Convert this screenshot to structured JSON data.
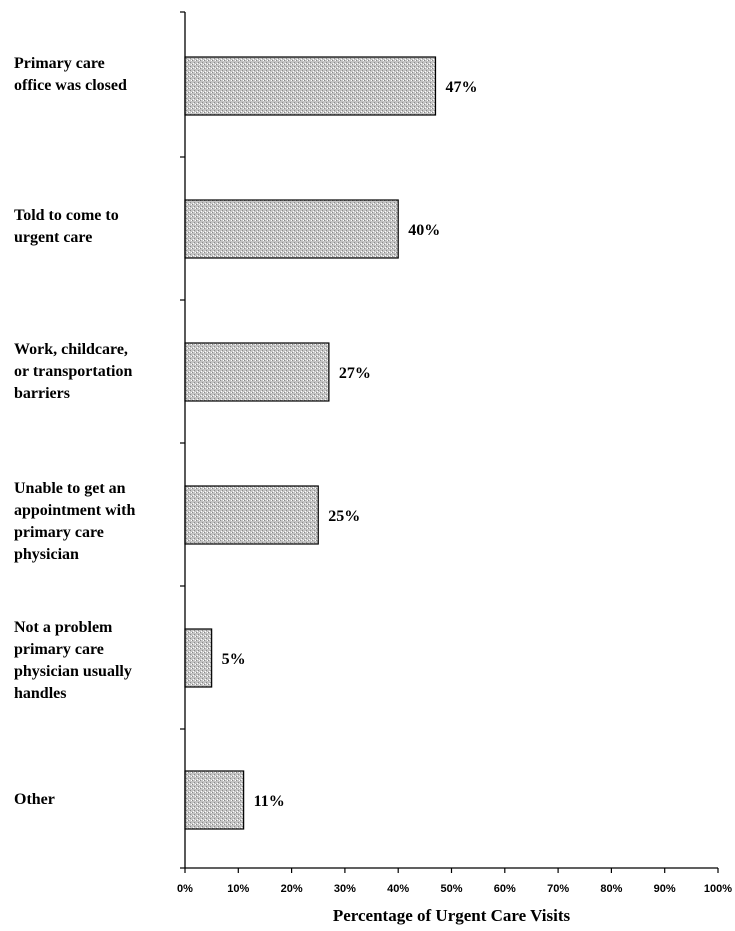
{
  "chart_data": {
    "type": "bar",
    "orientation": "horizontal",
    "categories": [
      "Primary care\noffice was closed",
      "Told to come to\nurgent care",
      "Work, childcare,\nor transportation\nbarriers",
      "Unable to get an\nappointment with\nprimary care\nphysician",
      "Not a problem\nprimary care\nphysician usually\nhandles",
      "Other"
    ],
    "values": [
      47,
      40,
      27,
      25,
      5,
      11
    ],
    "value_labels": [
      "47%",
      "40%",
      "27%",
      "25%",
      "5%",
      "11%"
    ],
    "xlabel": "Percentage of Urgent Care Visits",
    "ylabel": "",
    "xlim": [
      0,
      100
    ],
    "xticks": [
      "0%",
      "10%",
      "20%",
      "30%",
      "40%",
      "50%",
      "60%",
      "70%",
      "80%",
      "90%",
      "100%"
    ],
    "grid": false,
    "bar_fill": "#c4c4c4",
    "bar_stroke": "#000000"
  }
}
